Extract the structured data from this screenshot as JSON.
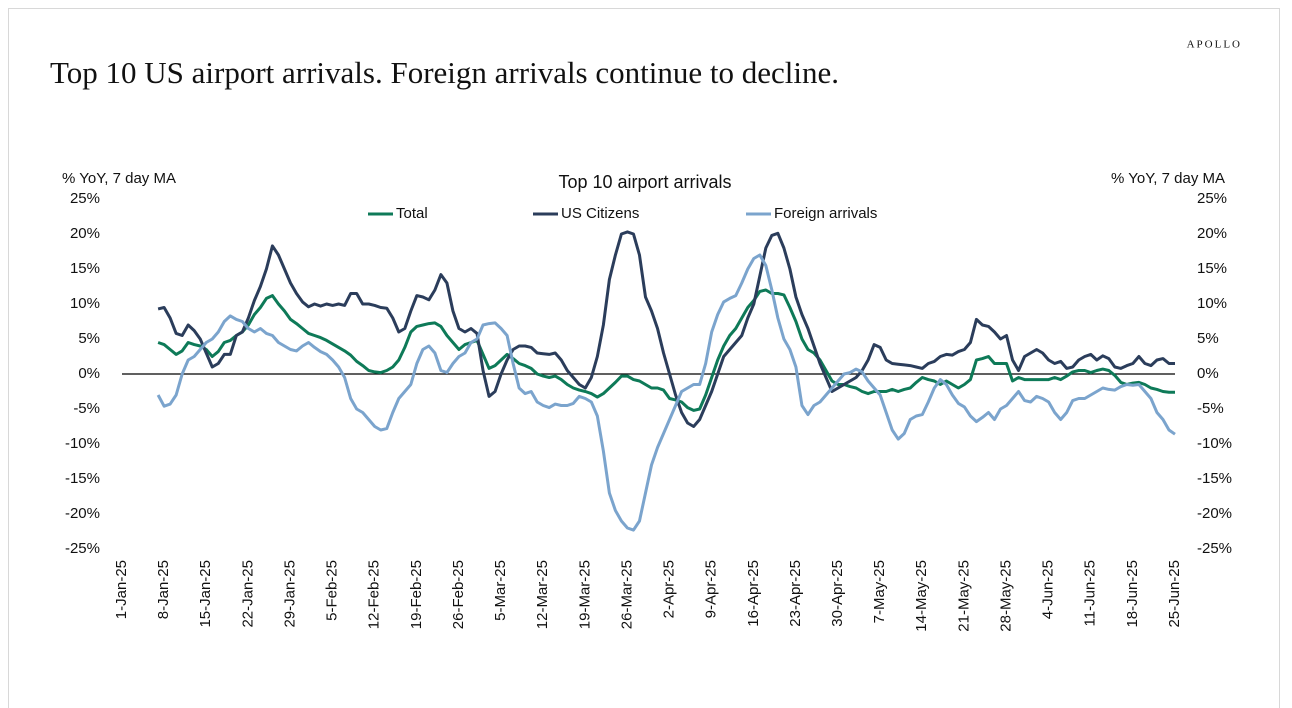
{
  "header": {
    "brand": "APOLLO",
    "headline": "Top 10 US airport arrivals. Foreign arrivals continue to decline."
  },
  "chart_data": {
    "type": "line",
    "title": "Top 10 airport arrivals",
    "ylabel": "% YoY, 7 day MA",
    "y2label": "% YoY, 7 day MA",
    "legend": "upper center",
    "categories": [
      "1-Jan-25",
      null,
      null,
      null,
      null,
      null,
      null,
      "8-Jan-25",
      null,
      null,
      null,
      null,
      null,
      null,
      "15-Jan-25",
      null,
      null,
      null,
      null,
      null,
      null,
      "22-Jan-25",
      null,
      null,
      null,
      null,
      null,
      null,
      "29-Jan-25",
      null,
      null,
      null,
      null,
      null,
      null,
      "5-Feb-25",
      null,
      null,
      null,
      null,
      null,
      null,
      "12-Feb-25",
      null,
      null,
      null,
      null,
      null,
      null,
      "19-Feb-25",
      null,
      null,
      null,
      null,
      null,
      null,
      "26-Feb-25",
      null,
      null,
      null,
      null,
      null,
      null,
      "5-Mar-25",
      null,
      null,
      null,
      null,
      null,
      null,
      "12-Mar-25",
      null,
      null,
      null,
      null,
      null,
      null,
      "19-Mar-25",
      null,
      null,
      null,
      null,
      null,
      null,
      "26-Mar-25",
      null,
      null,
      null,
      null,
      null,
      null,
      "2-Apr-25",
      null,
      null,
      null,
      null,
      null,
      null,
      "9-Apr-25",
      null,
      null,
      null,
      null,
      null,
      null,
      "16-Apr-25",
      null,
      null,
      null,
      null,
      null,
      null,
      "23-Apr-25",
      null,
      null,
      null,
      null,
      null,
      null,
      "30-Apr-25",
      null,
      null,
      null,
      null,
      null,
      null,
      "7-May-25",
      null,
      null,
      null,
      null,
      null,
      null,
      "14-May-25",
      null,
      null,
      null,
      null,
      null,
      null,
      "21-May-25",
      null,
      null,
      null,
      null,
      null,
      null,
      "28-May-25",
      null,
      null,
      null,
      null,
      null,
      null,
      "4-Jun-25",
      null,
      null,
      null,
      null,
      null,
      null,
      "11-Jun-25",
      null,
      null,
      null,
      null,
      null,
      null,
      "18-Jun-25",
      null,
      null,
      null,
      null,
      null,
      null,
      "25-Jun-25"
    ],
    "series": [
      {
        "name": "Total",
        "color": "#0e7a58",
        "values": [
          null,
          null,
          null,
          null,
          null,
          null,
          4.5,
          4.2,
          3.5,
          2.8,
          3.3,
          4.5,
          4.2,
          4,
          3.5,
          2.5,
          3.2,
          4.5,
          4.8,
          5.5,
          6,
          7,
          8.5,
          9.5,
          10.8,
          11.2,
          10,
          9,
          7.8,
          7.2,
          6.5,
          5.8,
          5.5,
          5.2,
          4.8,
          4.3,
          3.8,
          3.3,
          2.7,
          1.8,
          1.2,
          0.5,
          0.3,
          0.2,
          0.5,
          1,
          2,
          3.8,
          6,
          6.8,
          7,
          7.2,
          7.3,
          6.8,
          5.5,
          4.5,
          3.5,
          4.2,
          4.5,
          4.8,
          2.8,
          0.8,
          1.2,
          2,
          2.8,
          2.2,
          1.5,
          1.2,
          0.8,
          0,
          -0.3,
          -0.5,
          -0.3,
          -0.8,
          -1.5,
          -2,
          -2.3,
          -2.5,
          -2.8,
          -3.3,
          -2.8,
          -2,
          -1.2,
          -0.3,
          -0.3,
          -0.8,
          -1,
          -1.5,
          -2,
          -2,
          -2.3,
          -3.5,
          -3.7,
          -4,
          -4.8,
          -5.2,
          -5,
          -3,
          -0.5,
          2,
          4,
          5.5,
          6.5,
          8,
          9.5,
          10.5,
          11.8,
          12,
          11.5,
          11.5,
          11.3,
          9.5,
          7.5,
          5,
          3.5,
          3,
          2,
          0.5,
          -1,
          -1.5,
          -1.5,
          -1.8,
          -2,
          -2.5,
          -2.8,
          -2.5,
          -2.5,
          -2.5,
          -2.2,
          -2.5,
          -2.2,
          -2,
          -1.2,
          -0.5,
          -0.8,
          -1,
          -1.5,
          -1,
          -1.5,
          -2,
          -1.5,
          -0.8,
          2,
          2.2,
          2.5,
          1.5,
          1.5,
          1.5,
          -1,
          -0.5,
          -0.8,
          -0.8,
          -0.8,
          -0.8,
          -0.8,
          -0.5,
          -0.8,
          -0.3,
          0.3,
          0.5,
          0.5,
          0.2,
          0.5,
          0.7,
          0.5,
          -0.2,
          -1.2,
          -1.5,
          -1.3,
          -1.2,
          -1.5,
          -2,
          -2.2,
          -2.5,
          -2.6,
          -2.6
        ]
      },
      {
        "name": "US Citizens",
        "color": "#2b3d5b",
        "values": [
          null,
          null,
          null,
          null,
          null,
          null,
          9.3,
          9.5,
          8,
          5.8,
          5.5,
          7,
          6.2,
          5,
          3,
          1,
          1.5,
          2.8,
          2.8,
          5.5,
          6,
          8,
          10.5,
          12.5,
          15,
          18.3,
          17,
          15,
          13,
          11.5,
          10.3,
          9.6,
          10,
          9.7,
          10,
          9.8,
          10,
          9.8,
          11.5,
          11.5,
          10,
          10,
          9.8,
          9.5,
          9.4,
          8,
          6,
          6.5,
          9,
          11.2,
          11,
          10.6,
          12,
          14.2,
          13,
          9,
          6.5,
          6,
          6.5,
          5.8,
          0.5,
          -3.2,
          -2.5,
          0,
          2,
          3.5,
          4,
          4,
          3.8,
          3,
          2.9,
          2.8,
          3,
          2,
          0.5,
          -0.5,
          -1.5,
          -2,
          -0.5,
          2.5,
          7,
          13.5,
          17,
          20,
          20.3,
          20,
          17,
          11,
          9,
          6.5,
          3,
          0,
          -3,
          -5.5,
          -7,
          -7.5,
          -6.5,
          -4.5,
          -2.5,
          0,
          2.5,
          3.5,
          4.5,
          5.5,
          8,
          10,
          14,
          18,
          19.8,
          20.1,
          18,
          15,
          11,
          8.5,
          6.5,
          4,
          1.5,
          -0.5,
          -2.5,
          -2,
          -1.5,
          -1,
          -0.5,
          0.5,
          2,
          4.2,
          3.8,
          2,
          1.5,
          1.4,
          1.3,
          1.2,
          1,
          0.8,
          1.5,
          1.8,
          2.5,
          2.8,
          2.7,
          3.2,
          3.5,
          4.5,
          7.8,
          7,
          6.8,
          6,
          5,
          5.5,
          2,
          0.5,
          2.5,
          3,
          3.5,
          3,
          2,
          1.5,
          1.8,
          0.8,
          1,
          2,
          2.5,
          2.8,
          2,
          2.6,
          2.2,
          1,
          0.8,
          1.2,
          1.5,
          2.5,
          1.5,
          1.2,
          2,
          2.2,
          1.5,
          1.5
        ]
      },
      {
        "name": "Foreign arrivals",
        "color": "#7ba4cd",
        "values": [
          null,
          null,
          null,
          null,
          null,
          null,
          -3,
          -4.6,
          -4.3,
          -3,
          0,
          2,
          2.5,
          3.5,
          4.5,
          5,
          6,
          7.5,
          8.3,
          7.8,
          7.5,
          6.5,
          6,
          6.5,
          5.8,
          5.5,
          4.5,
          4,
          3.5,
          3.3,
          4,
          4.5,
          3.8,
          3.2,
          2.8,
          2,
          1,
          -0.5,
          -3.5,
          -5,
          -5.5,
          -6.5,
          -7.5,
          -8,
          -7.8,
          -5.5,
          -3.5,
          -2.5,
          -1.5,
          1.5,
          3.5,
          4,
          3,
          0.5,
          0.2,
          1.5,
          2.5,
          3,
          4.5,
          5,
          7,
          7.2,
          7.3,
          6.5,
          5.5,
          1.5,
          -2,
          -2.8,
          -2.5,
          -4,
          -4.5,
          -4.8,
          -4.3,
          -4.5,
          -4.5,
          -4.2,
          -3.2,
          -3.5,
          -4,
          -6,
          -11,
          -17,
          -19.5,
          -21,
          -22,
          -22.3,
          -21,
          -17,
          -13,
          -10.5,
          -8.5,
          -6.5,
          -4.5,
          -2.5,
          -2,
          -1.5,
          -1.5,
          1.5,
          6,
          8.5,
          10.3,
          10.8,
          11.2,
          13,
          15,
          16.5,
          17,
          15.5,
          12,
          8,
          5,
          3.5,
          1,
          -4.5,
          -5.8,
          -4.5,
          -4,
          -3,
          -2,
          -1,
          0,
          0.2,
          0.7,
          0.3,
          -1,
          -2,
          -3,
          -5.5,
          -8,
          -9.3,
          -8.5,
          -6.5,
          -6,
          -5.8,
          -4,
          -2,
          -0.8,
          -1.5,
          -3,
          -4.2,
          -4.7,
          -6,
          -6.8,
          -6.2,
          -5.5,
          -6.5,
          -5,
          -4.5,
          -3.5,
          -2.5,
          -3.8,
          -4,
          -3.2,
          -3.5,
          -4,
          -5.5,
          -6.5,
          -5.5,
          -3.8,
          -3.5,
          -3.5,
          -3,
          -2.5,
          -2,
          -2.2,
          -2.3,
          -1.8,
          -1.5,
          -1.6,
          -1.5,
          -2.5,
          -3.5,
          -5.5,
          -6.5,
          -8,
          -8.6
        ]
      }
    ],
    "ylim": [
      -25,
      25
    ],
    "yticks": [
      {
        "value": -25,
        "label": "-25%"
      },
      {
        "value": -20,
        "label": "-20%"
      },
      {
        "value": -15,
        "label": "-15%"
      },
      {
        "value": -10,
        "label": "-10%"
      },
      {
        "value": -5,
        "label": "-5%"
      },
      {
        "value": 0,
        "label": "0%"
      },
      {
        "value": 5,
        "label": "5%"
      },
      {
        "value": 10,
        "label": "10%"
      },
      {
        "value": 15,
        "label": "15%"
      },
      {
        "value": 20,
        "label": "20%"
      },
      {
        "value": 25,
        "label": "25%"
      }
    ],
    "y2lim": [
      -25,
      25
    ],
    "y2ticks": [
      {
        "value": -25,
        "label": "-25%"
      },
      {
        "value": -20,
        "label": "-20%"
      },
      {
        "value": -15,
        "label": "-15%"
      },
      {
        "value": -10,
        "label": "-10%"
      },
      {
        "value": -5,
        "label": "-5%"
      },
      {
        "value": 0,
        "label": "0%"
      },
      {
        "value": 5,
        "label": "5%"
      },
      {
        "value": 10,
        "label": "10%"
      },
      {
        "value": 15,
        "label": "15%"
      },
      {
        "value": 20,
        "label": "20%"
      },
      {
        "value": 25,
        "label": "25%"
      }
    ],
    "grid": false
  }
}
